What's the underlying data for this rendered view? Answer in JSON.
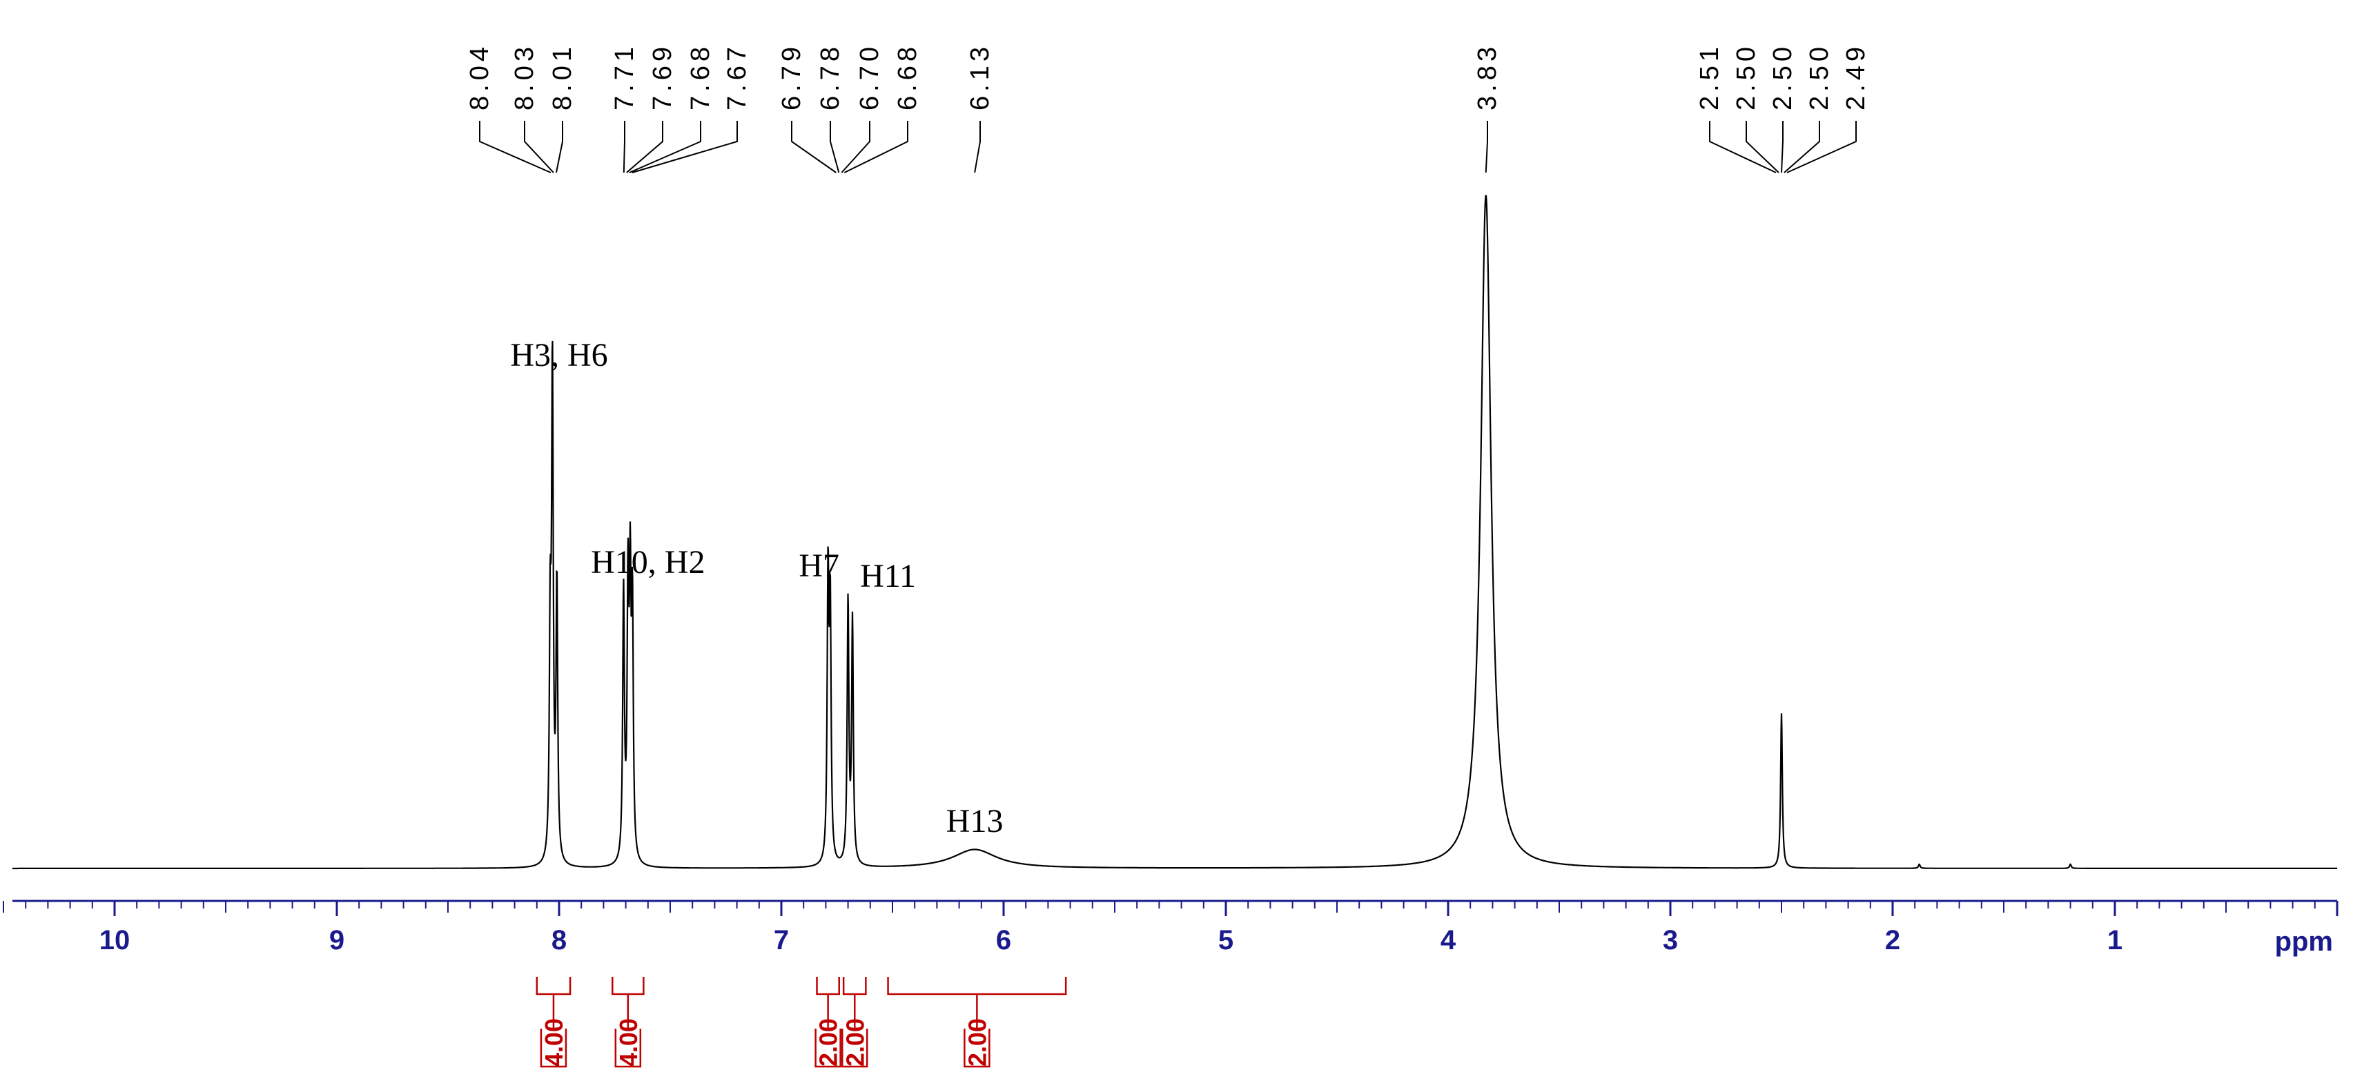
{
  "chart_data": {
    "type": "line",
    "title": "",
    "xlabel": "ppm",
    "ylabel": "",
    "xlim": [
      10.55,
      0.0
    ],
    "x_axis_reversed": true,
    "x_ticks": [
      "10",
      "9",
      "8",
      "7",
      "6",
      "5",
      "4",
      "3",
      "2",
      "1"
    ],
    "grid": false,
    "colors": {
      "spectrum": "#000000",
      "axis": "#1a1a8c",
      "integral": "#c00000",
      "peak_label": "#000000"
    },
    "peaks": [
      {
        "shift": 8.04,
        "height": 0.33
      },
      {
        "shift": 8.03,
        "height": 0.72
      },
      {
        "shift": 8.01,
        "height": 0.41
      },
      {
        "shift": 7.71,
        "height": 0.4
      },
      {
        "shift": 7.69,
        "height": 0.39
      },
      {
        "shift": 7.68,
        "height": 0.38
      },
      {
        "shift": 7.67,
        "height": 0.36
      },
      {
        "shift": 6.79,
        "height": 0.42
      },
      {
        "shift": 6.78,
        "height": 0.37
      },
      {
        "shift": 6.7,
        "height": 0.39
      },
      {
        "shift": 6.68,
        "height": 0.36
      },
      {
        "shift": 6.13,
        "height": 0.028,
        "broad": true
      },
      {
        "shift": 3.83,
        "height": 1.0,
        "broad": true
      },
      {
        "shift": 2.5,
        "height": 0.23
      },
      {
        "shift": 1.88,
        "height": 0.006
      },
      {
        "shift": 1.2,
        "height": 0.006
      }
    ],
    "peak_labels": [
      {
        "group": 1,
        "apex": 8.025,
        "labels": [
          "8.04",
          "8.03",
          "8.01"
        ]
      },
      {
        "group": 2,
        "apex": 7.69,
        "labels": [
          "7.71",
          "7.69",
          "7.68",
          "7.67"
        ]
      },
      {
        "group": 3,
        "apex": 6.735,
        "labels": [
          "6.79",
          "6.78",
          "6.70",
          "6.68"
        ]
      },
      {
        "group": 4,
        "apex": 6.13,
        "labels": [
          "6.13"
        ]
      },
      {
        "group": 5,
        "apex": 3.83,
        "labels": [
          "3.83"
        ]
      },
      {
        "group": 6,
        "apex": 2.5,
        "labels": [
          "2.51",
          "2.50",
          "2.50",
          "2.50",
          "2.49"
        ]
      }
    ],
    "assignments": [
      {
        "text": "H3, H6",
        "shift": 8.0
      },
      {
        "text": "H10, H2",
        "shift": 7.6
      },
      {
        "text": "H7",
        "shift": 6.83
      },
      {
        "text": "H11",
        "shift": 6.52
      },
      {
        "text": "H13",
        "shift": 6.13
      }
    ],
    "integrals": [
      {
        "value": "4.00",
        "from": 8.1,
        "to": 7.95
      },
      {
        "value": "4.00",
        "from": 7.76,
        "to": 7.62
      },
      {
        "value": "2.00",
        "from": 6.84,
        "to": 6.74
      },
      {
        "value": "2.00",
        "from": 6.72,
        "to": 6.62
      },
      {
        "value": "2.00",
        "from": 6.52,
        "to": 5.72
      }
    ]
  }
}
